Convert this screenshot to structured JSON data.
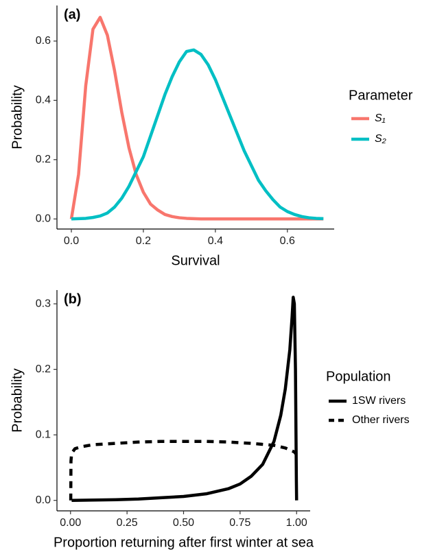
{
  "chart_data": [
    {
      "type": "line",
      "annotation": "(a)",
      "xlabel": "Survival",
      "ylabel": "Probability",
      "legend_title": "Parameter",
      "x": [
        0,
        0.02,
        0.04,
        0.06,
        0.08,
        0.1,
        0.12,
        0.14,
        0.16,
        0.18,
        0.2,
        0.22,
        0.24,
        0.26,
        0.28,
        0.3,
        0.32,
        0.34,
        0.36,
        0.38,
        0.4,
        0.42,
        0.44,
        0.46,
        0.48,
        0.5,
        0.52,
        0.54,
        0.56,
        0.58,
        0.6,
        0.62,
        0.64,
        0.66,
        0.68,
        0.7
      ],
      "series": [
        {
          "name": "S₁",
          "color": "#f8766d",
          "linestyle": "solid",
          "values": [
            0,
            0.15,
            0.45,
            0.64,
            0.68,
            0.62,
            0.5,
            0.36,
            0.24,
            0.15,
            0.09,
            0.05,
            0.03,
            0.015,
            0.008,
            0.004,
            0.002,
            0.001,
            0,
            0,
            0,
            0,
            0,
            0,
            0,
            0,
            0,
            0,
            0,
            0,
            0,
            0,
            0,
            0,
            0,
            0
          ]
        },
        {
          "name": "S₂",
          "color": "#00bfc4",
          "linestyle": "solid",
          "values": [
            0,
            0.001,
            0.002,
            0.005,
            0.01,
            0.02,
            0.04,
            0.07,
            0.11,
            0.16,
            0.21,
            0.28,
            0.35,
            0.42,
            0.48,
            0.53,
            0.565,
            0.57,
            0.555,
            0.52,
            0.47,
            0.41,
            0.35,
            0.29,
            0.23,
            0.18,
            0.13,
            0.095,
            0.065,
            0.04,
            0.025,
            0.015,
            0.008,
            0.004,
            0.002,
            0.001
          ]
        }
      ],
      "xlim": [
        -0.04,
        0.73
      ],
      "ylim": [
        -0.034,
        0.72
      ],
      "xticks": [
        {
          "value": 0,
          "label": "0.0"
        },
        {
          "value": 0.2,
          "label": "0.2"
        },
        {
          "value": 0.4,
          "label": "0.4"
        },
        {
          "value": 0.6,
          "label": "0.6"
        }
      ],
      "yticks": [
        {
          "value": 0,
          "label": "0.0"
        },
        {
          "value": 0.2,
          "label": "0.2"
        },
        {
          "value": 0.4,
          "label": "0.4"
        },
        {
          "value": 0.6,
          "label": "0.6"
        }
      ],
      "grid": false
    },
    {
      "type": "line",
      "annotation": "(b)",
      "xlabel": "Proportion returning after first winter at sea",
      "ylabel": "Probability",
      "legend_title": "Population",
      "series": [
        {
          "name": "1SW rivers",
          "color": "#000000",
          "linestyle": "solid",
          "x": [
            0.005,
            0.1,
            0.2,
            0.3,
            0.4,
            0.5,
            0.6,
            0.7,
            0.75,
            0.8,
            0.85,
            0.9,
            0.93,
            0.95,
            0.97,
            0.98,
            0.985,
            0.99,
            0.995,
            0.999,
            1.0
          ],
          "values": [
            0,
            0.0005,
            0.001,
            0.002,
            0.004,
            0.006,
            0.01,
            0.018,
            0.025,
            0.037,
            0.055,
            0.09,
            0.13,
            0.17,
            0.23,
            0.28,
            0.31,
            0.3,
            0.2,
            0.03,
            0
          ]
        },
        {
          "name": "Other rivers",
          "color": "#000000",
          "linestyle": "dashed",
          "x": [
            0.001,
            0.002,
            0.005,
            0.02,
            0.05,
            0.1,
            0.2,
            0.3,
            0.4,
            0.5,
            0.6,
            0.7,
            0.8,
            0.9,
            0.95,
            0.99,
            0.999
          ],
          "values": [
            0,
            0.06,
            0.072,
            0.079,
            0.082,
            0.085,
            0.087,
            0.089,
            0.09,
            0.09,
            0.09,
            0.089,
            0.087,
            0.084,
            0.08,
            0.074,
            0.07
          ]
        }
      ],
      "xlim": [
        -0.06,
        1.06
      ],
      "ylim": [
        -0.016,
        0.321
      ],
      "xticks": [
        {
          "value": 0,
          "label": "0.00"
        },
        {
          "value": 0.25,
          "label": "0.25"
        },
        {
          "value": 0.5,
          "label": "0.50"
        },
        {
          "value": 0.75,
          "label": "0.75"
        },
        {
          "value": 1,
          "label": "1.00"
        }
      ],
      "yticks": [
        {
          "value": 0,
          "label": "0.0"
        },
        {
          "value": 0.1,
          "label": "0.1"
        },
        {
          "value": 0.2,
          "label": "0.2"
        },
        {
          "value": 0.3,
          "label": "0.3"
        }
      ],
      "grid": false
    }
  ]
}
